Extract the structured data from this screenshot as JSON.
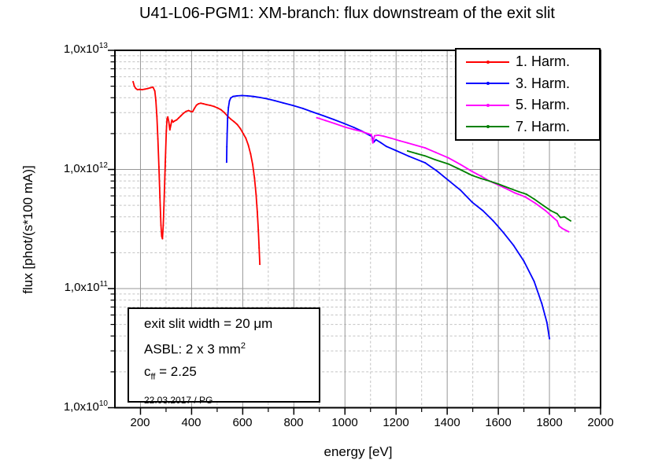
{
  "title": "U41-L06-PGM1: XM-branch: flux downstream of the exit slit",
  "annotation_box": {
    "line1": "exit slit width = 20 μm",
    "line2_prefix": "ASBL: 2 x 3 mm",
    "line2_sup": "2",
    "line3_prefix": "c",
    "line3_sub": "ff",
    "line3_suffix": " = 2.25",
    "date_line": "22.03.2017 /  PG"
  },
  "chart_data": {
    "type": "line",
    "title": "U41-L06-PGM1: XM-branch: flux downstream of the exit slit",
    "xlabel": "energy [eV]",
    "ylabel": "flux [phot/(s*100 mA)]",
    "xlim": [
      100,
      2000
    ],
    "ylim": [
      10000000000.0,
      10000000000000.0
    ],
    "y_scale": "log",
    "grid": {
      "major_color": "#979797",
      "minor_color": "#c3c3c3",
      "minor_style": "dashed"
    },
    "x_major_ticks": [
      200,
      400,
      600,
      800,
      1000,
      1200,
      1400,
      1600,
      1800,
      2000
    ],
    "x_minor_ticks": [
      300,
      500,
      700,
      900,
      1100,
      1300,
      1500,
      1700,
      1900
    ],
    "y_major_ticks": [
      {
        "value": 10000000000000.0,
        "mantissa": "1,0x10",
        "exp": "13"
      },
      {
        "value": 1000000000000.0,
        "mantissa": "1,0x10",
        "exp": "12"
      },
      {
        "value": 100000000000.0,
        "mantissa": "1,0x10",
        "exp": "11"
      },
      {
        "value": 10000000000.0,
        "mantissa": "1,0x10",
        "exp": "10"
      }
    ],
    "legend_position": "top-right",
    "series": [
      {
        "name": "1. Harm.",
        "color": "#ff0000",
        "points": [
          [
            171,
            5450000000000.0
          ],
          [
            176,
            5000000000000.0
          ],
          [
            181,
            4800000000000.0
          ],
          [
            188,
            4680000000000.0
          ],
          [
            197,
            4700000000000.0
          ],
          [
            207,
            4680000000000.0
          ],
          [
            217,
            4720000000000.0
          ],
          [
            228,
            4780000000000.0
          ],
          [
            239,
            4850000000000.0
          ],
          [
            249,
            4900000000000.0
          ],
          [
            256,
            4550000000000.0
          ],
          [
            260,
            3800000000000.0
          ],
          [
            264,
            2800000000000.0
          ],
          [
            268,
            1800000000000.0
          ],
          [
            272,
            1050000000000.0
          ],
          [
            276,
            580000000000.0
          ],
          [
            280,
            340000000000.0
          ],
          [
            283,
            275000000000.0
          ],
          [
            286,
            262000000000.0
          ],
          [
            289,
            340000000000.0
          ],
          [
            293,
            600000000000.0
          ],
          [
            297,
            1150000000000.0
          ],
          [
            301,
            2100000000000.0
          ],
          [
            304,
            2650000000000.0
          ],
          [
            307,
            2760000000000.0
          ],
          [
            311,
            2500000000000.0
          ],
          [
            315,
            2150000000000.0
          ],
          [
            319,
            2360000000000.0
          ],
          [
            323,
            2600000000000.0
          ],
          [
            328,
            2500000000000.0
          ],
          [
            334,
            2560000000000.0
          ],
          [
            341,
            2600000000000.0
          ],
          [
            349,
            2700000000000.0
          ],
          [
            358,
            2820000000000.0
          ],
          [
            368,
            2960000000000.0
          ],
          [
            378,
            3070000000000.0
          ],
          [
            388,
            3120000000000.0
          ],
          [
            397,
            3070000000000.0
          ],
          [
            404,
            3050000000000.0
          ],
          [
            411,
            3250000000000.0
          ],
          [
            419,
            3460000000000.0
          ],
          [
            427,
            3560000000000.0
          ],
          [
            436,
            3600000000000.0
          ],
          [
            446,
            3560000000000.0
          ],
          [
            459,
            3500000000000.0
          ],
          [
            473,
            3450000000000.0
          ],
          [
            488,
            3380000000000.0
          ],
          [
            502,
            3280000000000.0
          ],
          [
            515,
            3170000000000.0
          ],
          [
            528,
            3000000000000.0
          ],
          [
            541,
            2800000000000.0
          ],
          [
            553,
            2650000000000.0
          ],
          [
            566,
            2520000000000.0
          ],
          [
            579,
            2380000000000.0
          ],
          [
            591,
            2200000000000.0
          ],
          [
            602,
            2000000000000.0
          ],
          [
            612,
            1830000000000.0
          ],
          [
            622,
            1600000000000.0
          ],
          [
            631,
            1350000000000.0
          ],
          [
            639,
            1100000000000.0
          ],
          [
            646,
            850000000000.0
          ],
          [
            652,
            620000000000.0
          ],
          [
            657,
            440000000000.0
          ],
          [
            661,
            310000000000.0
          ],
          [
            664,
            220000000000.0
          ],
          [
            667,
            160000000000.0
          ]
        ]
      },
      {
        "name": "3. Harm.",
        "color": "#0000ff",
        "points": [
          [
            537,
            1150000000000.0
          ],
          [
            538,
            1550000000000.0
          ],
          [
            539,
            2000000000000.0
          ],
          [
            541,
            2700000000000.0
          ],
          [
            544,
            3300000000000.0
          ],
          [
            548,
            3750000000000.0
          ],
          [
            553,
            3980000000000.0
          ],
          [
            562,
            4100000000000.0
          ],
          [
            578,
            4150000000000.0
          ],
          [
            597,
            4170000000000.0
          ],
          [
            618,
            4150000000000.0
          ],
          [
            642,
            4100000000000.0
          ],
          [
            668,
            4020000000000.0
          ],
          [
            695,
            3920000000000.0
          ],
          [
            725,
            3780000000000.0
          ],
          [
            758,
            3620000000000.0
          ],
          [
            795,
            3450000000000.0
          ],
          [
            835,
            3250000000000.0
          ],
          [
            875,
            3030000000000.0
          ],
          [
            915,
            2830000000000.0
          ],
          [
            955,
            2630000000000.0
          ],
          [
            995,
            2440000000000.0
          ],
          [
            1035,
            2250000000000.0
          ],
          [
            1066,
            2100000000000.0
          ],
          [
            1090,
            1970000000000.0
          ],
          [
            1105,
            1890000000000.0
          ],
          [
            1113,
            1700000000000.0
          ],
          [
            1121,
            1780000000000.0
          ],
          [
            1140,
            1680000000000.0
          ],
          [
            1162,
            1560000000000.0
          ],
          [
            1200,
            1440000000000.0
          ],
          [
            1250,
            1290000000000.0
          ],
          [
            1313,
            1140000000000.0
          ],
          [
            1360,
            970000000000.0
          ],
          [
            1405,
            810000000000.0
          ],
          [
            1452,
            670000000000.0
          ],
          [
            1498,
            530000000000.0
          ],
          [
            1540,
            450000000000.0
          ],
          [
            1580,
            370000000000.0
          ],
          [
            1620,
            295000000000.0
          ],
          [
            1660,
            230000000000.0
          ],
          [
            1700,
            170000000000.0
          ],
          [
            1740,
            115000000000.0
          ],
          [
            1770,
            75000000000.0
          ],
          [
            1790,
            52000000000.0
          ],
          [
            1800,
            38000000000.0
          ]
        ]
      },
      {
        "name": "5. Harm.",
        "color": "#ff00ff",
        "points": [
          [
            890,
            2720000000000.0
          ],
          [
            925,
            2570000000000.0
          ],
          [
            960,
            2430000000000.0
          ],
          [
            1000,
            2270000000000.0
          ],
          [
            1035,
            2160000000000.0
          ],
          [
            1066,
            2080000000000.0
          ],
          [
            1090,
            2000000000000.0
          ],
          [
            1103,
            1960000000000.0
          ],
          [
            1109,
            1670000000000.0
          ],
          [
            1116,
            1920000000000.0
          ],
          [
            1130,
            1940000000000.0
          ],
          [
            1152,
            1900000000000.0
          ],
          [
            1180,
            1830000000000.0
          ],
          [
            1215,
            1740000000000.0
          ],
          [
            1245,
            1670000000000.0
          ],
          [
            1280,
            1590000000000.0
          ],
          [
            1313,
            1520000000000.0
          ],
          [
            1355,
            1390000000000.0
          ],
          [
            1405,
            1250000000000.0
          ],
          [
            1452,
            1100000000000.0
          ],
          [
            1498,
            960000000000.0
          ],
          [
            1532,
            880000000000.0
          ],
          [
            1565,
            800000000000.0
          ],
          [
            1600,
            740000000000.0
          ],
          [
            1625,
            700000000000.0
          ],
          [
            1665,
            635000000000.0
          ],
          [
            1704,
            590000000000.0
          ],
          [
            1745,
            520000000000.0
          ],
          [
            1785,
            450000000000.0
          ],
          [
            1812,
            400000000000.0
          ],
          [
            1830,
            370000000000.0
          ],
          [
            1838,
            335000000000.0
          ],
          [
            1850,
            320000000000.0
          ],
          [
            1862,
            310000000000.0
          ],
          [
            1875,
            300000000000.0
          ]
        ]
      },
      {
        "name": "7. Harm.",
        "color": "#008000",
        "points": [
          [
            1245,
            1430000000000.0
          ],
          [
            1280,
            1360000000000.0
          ],
          [
            1313,
            1300000000000.0
          ],
          [
            1352,
            1210000000000.0
          ],
          [
            1405,
            1110000000000.0
          ],
          [
            1450,
            1000000000000.0
          ],
          [
            1498,
            890000000000.0
          ],
          [
            1532,
            840000000000.0
          ],
          [
            1565,
            800000000000.0
          ],
          [
            1600,
            755000000000.0
          ],
          [
            1640,
            700000000000.0
          ],
          [
            1680,
            650000000000.0
          ],
          [
            1710,
            620000000000.0
          ],
          [
            1740,
            565000000000.0
          ],
          [
            1775,
            500000000000.0
          ],
          [
            1806,
            450000000000.0
          ],
          [
            1830,
            425000000000.0
          ],
          [
            1843,
            395000000000.0
          ],
          [
            1858,
            400000000000.0
          ],
          [
            1870,
            385000000000.0
          ],
          [
            1883,
            370000000000.0
          ]
        ]
      }
    ]
  }
}
